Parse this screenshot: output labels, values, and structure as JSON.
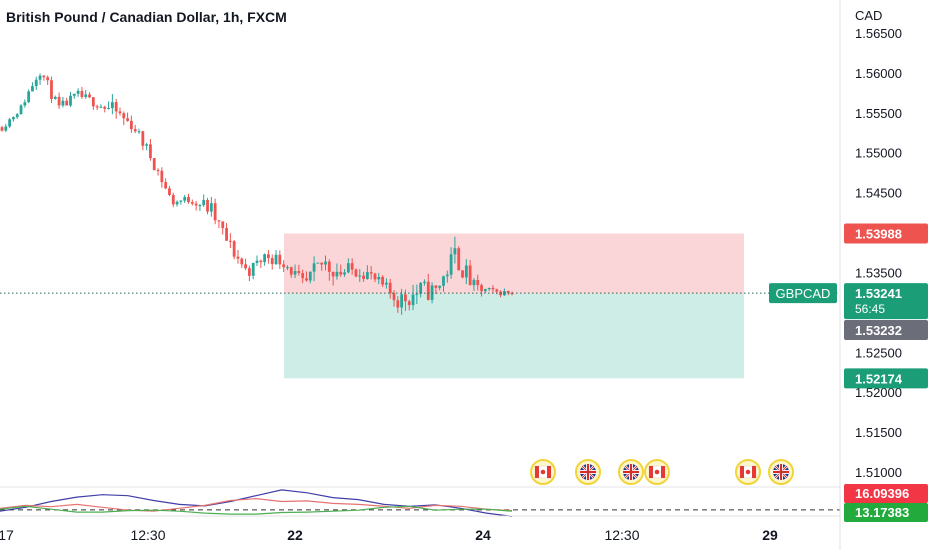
{
  "chart_data": {
    "type": "candlestick",
    "title": "British Pound / Canadian Dollar, 1h, FXCM",
    "currency_label": "CAD",
    "symbol": "GBPCAD",
    "colors": {
      "up": "#26a69a",
      "down": "#ef5350",
      "accent_blue": "#2962ff"
    },
    "price_axis": {
      "ylim": [
        1.5045,
        1.5685
      ],
      "ticks": [
        "1.56500",
        "1.56000",
        "1.55500",
        "1.55000",
        "1.54500",
        "1.53500",
        "1.52500",
        "1.52000",
        "1.51500",
        "1.51000"
      ]
    },
    "time_axis": {
      "labels": [
        "17",
        "12:30",
        "22",
        "24",
        "12:30",
        "29"
      ]
    },
    "price_labels": {
      "stop_loss": "1.53988",
      "last_price": "1.53241",
      "countdown": "56:45",
      "entry": "1.53232",
      "take_profit": "1.52174"
    },
    "position": {
      "entry": 1.53232,
      "stop": 1.53988,
      "target": 1.52174
    },
    "anchors": [
      {
        "close": 1.5532,
        "lo": 1.5523,
        "hi": 1.5539
      },
      {
        "close": 1.5556,
        "lo": 1.5548,
        "hi": 1.5564
      },
      {
        "close": 1.5605,
        "lo": 1.5585,
        "hi": 1.5614
      },
      {
        "close": 1.5555,
        "lo": 1.5545,
        "hi": 1.5568
      },
      {
        "close": 1.5572,
        "lo": 1.5555,
        "hi": 1.5578
      },
      {
        "close": 1.5562,
        "lo": 1.5548,
        "hi": 1.557
      },
      {
        "close": 1.5551,
        "lo": 1.5522,
        "hi": 1.5566
      },
      {
        "close": 1.5532,
        "lo": 1.552,
        "hi": 1.5545
      },
      {
        "close": 1.549,
        "lo": 1.5478,
        "hi": 1.551
      },
      {
        "close": 1.5438,
        "lo": 1.5432,
        "hi": 1.5455
      },
      {
        "close": 1.5442,
        "lo": 1.543,
        "hi": 1.5451
      },
      {
        "close": 1.543,
        "lo": 1.5422,
        "hi": 1.5468
      },
      {
        "close": 1.5385,
        "lo": 1.5375,
        "hi": 1.5415
      },
      {
        "close": 1.535,
        "lo": 1.5338,
        "hi": 1.5365
      },
      {
        "close": 1.5372,
        "lo": 1.5346,
        "hi": 1.538
      },
      {
        "close": 1.5362,
        "lo": 1.535,
        "hi": 1.5378
      },
      {
        "close": 1.5332,
        "lo": 1.532,
        "hi": 1.5358
      },
      {
        "close": 1.5362,
        "lo": 1.5322,
        "hi": 1.5385
      },
      {
        "close": 1.535,
        "lo": 1.5333,
        "hi": 1.5372
      },
      {
        "close": 1.5355,
        "lo": 1.534,
        "hi": 1.538
      },
      {
        "close": 1.5335,
        "lo": 1.5325,
        "hi": 1.5356
      },
      {
        "close": 1.5315,
        "lo": 1.5292,
        "hi": 1.5336
      },
      {
        "close": 1.5325,
        "lo": 1.5275,
        "hi": 1.534
      },
      {
        "close": 1.5328,
        "lo": 1.5305,
        "hi": 1.5338
      },
      {
        "close": 1.5372,
        "lo": 1.5325,
        "hi": 1.5386
      },
      {
        "close": 1.533,
        "lo": 1.5318,
        "hi": 1.5355
      },
      {
        "close": 1.5325,
        "lo": 1.5318,
        "hi": 1.5336
      },
      {
        "close": 1.5325,
        "lo": 1.532,
        "hi": 1.533
      }
    ],
    "events": [
      {
        "flags": [
          "canada"
        ]
      },
      {
        "flags": [
          "uk"
        ]
      },
      {
        "flags": [
          "uk",
          "canada"
        ]
      },
      {
        "flags": [
          "canada"
        ]
      },
      {
        "flags": [
          "uk"
        ]
      }
    ],
    "indicator": {
      "label_top": "16.09396",
      "label_bottom": "13.17383",
      "ref_value": 13.17383,
      "ylim": [
        10,
        25
      ],
      "series": [
        {
          "color": "#3f3fa8",
          "values": [
            12.5,
            14.5,
            17.5,
            19.8,
            21.0,
            20.5,
            18.0,
            16.0,
            15.2,
            17.5,
            20.5,
            23.5,
            22.0,
            19.5,
            18.5,
            16.0,
            15.0,
            15.8,
            14.0,
            11.5,
            9.8
          ]
        },
        {
          "color": "#e57373",
          "values": [
            14.0,
            15.5,
            14.8,
            16.0,
            14.5,
            13.0,
            12.5,
            14.0,
            15.5,
            18.0,
            19.0,
            17.5,
            17.8,
            16.5,
            16.0,
            15.0,
            14.0,
            15.5,
            15.0,
            13.5,
            12.8
          ]
        },
        {
          "color": "#4caf50",
          "values": [
            13.5,
            15.0,
            13.5,
            12.0,
            12.0,
            12.8,
            13.0,
            12.5,
            11.5,
            11.0,
            11.0,
            11.8,
            12.0,
            12.5,
            13.0,
            14.5,
            15.0,
            13.0,
            13.5,
            13.5,
            12.5
          ]
        }
      ]
    }
  }
}
